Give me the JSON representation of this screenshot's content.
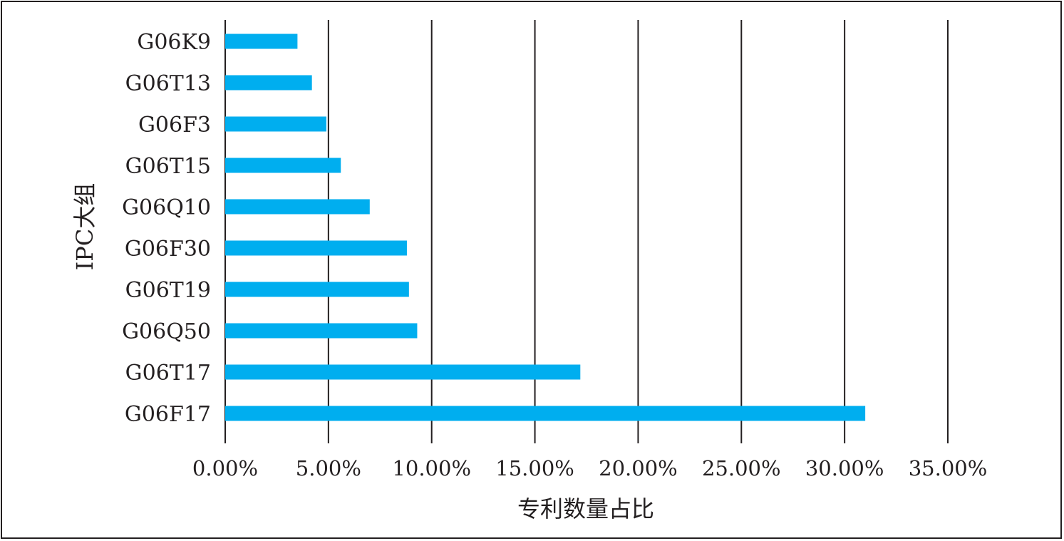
{
  "chart_data": {
    "type": "bar",
    "orientation": "horizontal",
    "categories": [
      "G06K9",
      "G06T13",
      "G06F3",
      "G06T15",
      "G06Q10",
      "G06F30",
      "G06T19",
      "G06Q50",
      "G06T17",
      "G06F17"
    ],
    "values": [
      3.5,
      4.2,
      4.9,
      5.6,
      7.0,
      8.8,
      8.9,
      9.3,
      17.2,
      31.0
    ],
    "xlim": [
      0,
      35
    ],
    "xticks": [
      0,
      5,
      10,
      15,
      20,
      25,
      30,
      35
    ],
    "xtick_labels": [
      "0.00%",
      "5.00%",
      "10.00%",
      "15.00%",
      "20.00%",
      "25.00%",
      "30.00%",
      "35.00%"
    ],
    "xlabel": "专利数量占比",
    "ylabel": "IPC大组",
    "grid": true,
    "bar_color": "#00aeef"
  }
}
